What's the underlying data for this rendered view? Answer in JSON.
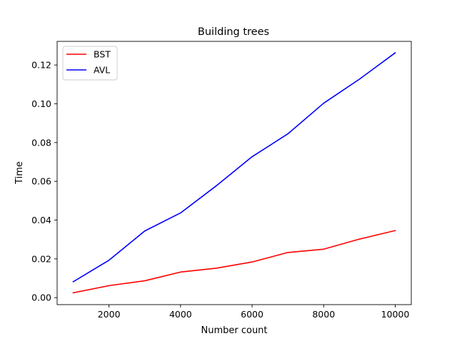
{
  "chart_data": {
    "type": "line",
    "title": "Building trees",
    "xlabel": "Number count",
    "ylabel": "Time",
    "xlim": [
      550,
      10450
    ],
    "ylim": [
      -0.0036,
      0.1322
    ],
    "xticks": [
      2000,
      4000,
      6000,
      8000,
      10000
    ],
    "xtick_labels": [
      "2000",
      "4000",
      "6000",
      "8000",
      "10000"
    ],
    "yticks": [
      0.0,
      0.02,
      0.04,
      0.06,
      0.08,
      0.1,
      0.12
    ],
    "ytick_labels": [
      "0.00",
      "0.02",
      "0.04",
      "0.06",
      "0.08",
      "0.10",
      "0.12"
    ],
    "grid": false,
    "legend_position": "top-left",
    "x": [
      1000,
      2000,
      3000,
      4000,
      5000,
      6000,
      7000,
      8000,
      9000,
      10000
    ],
    "series": [
      {
        "name": "BST",
        "color": "#ff0000",
        "values": [
          0.0025,
          0.0062,
          0.0087,
          0.0132,
          0.0152,
          0.0184,
          0.0233,
          0.025,
          0.0302,
          0.0346
        ]
      },
      {
        "name": "AVL",
        "color": "#0000ff",
        "values": [
          0.0082,
          0.0193,
          0.0344,
          0.0437,
          0.0577,
          0.0727,
          0.0845,
          0.1003,
          0.1127,
          0.1263
        ]
      }
    ]
  }
}
